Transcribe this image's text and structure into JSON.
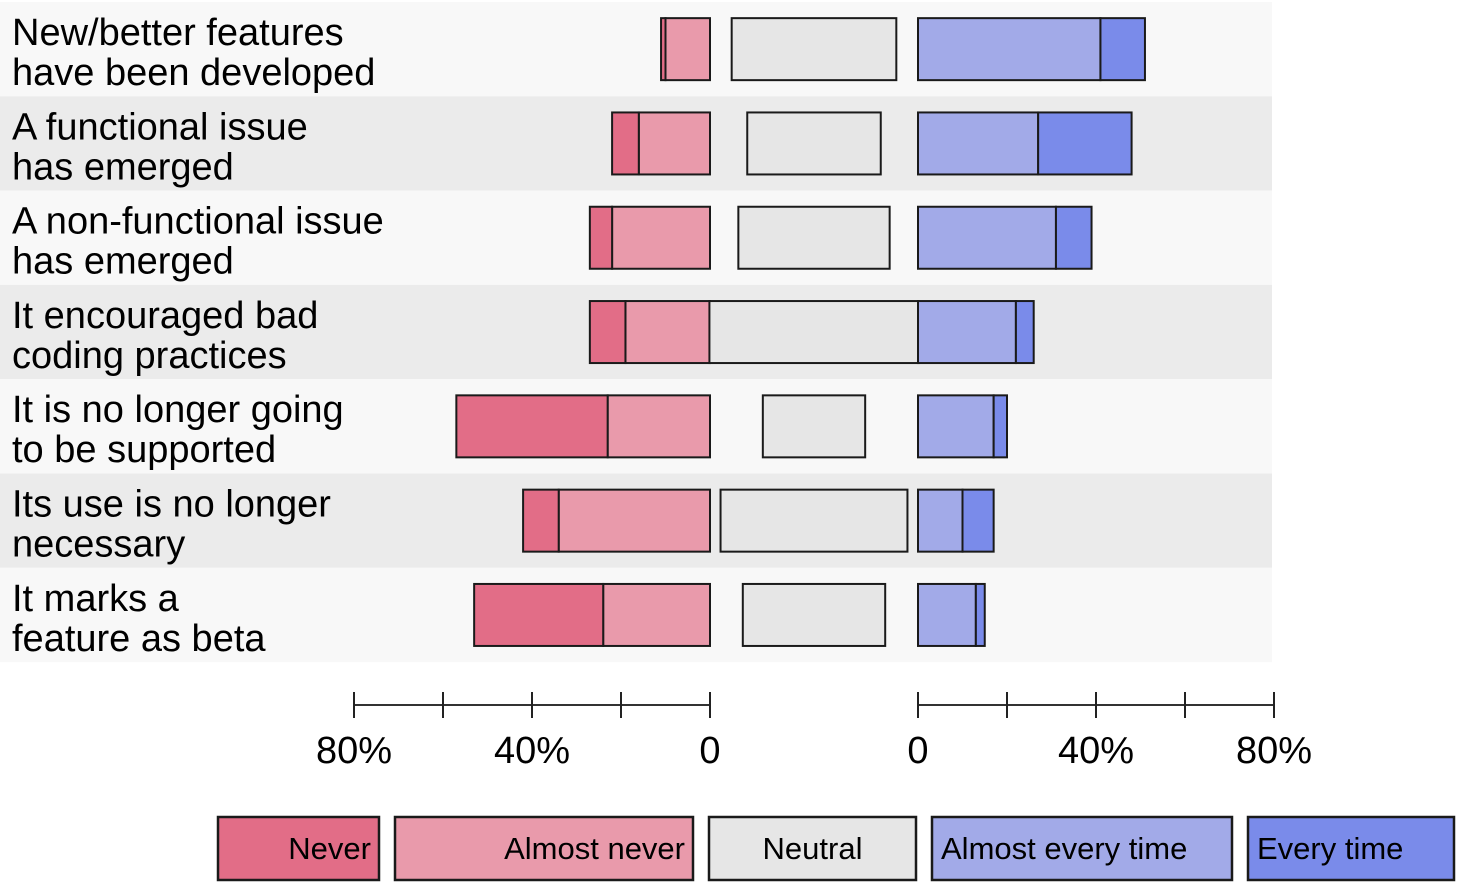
{
  "chart_data": {
    "type": "bar",
    "subtype": "diverging-stacked",
    "categories": [
      [
        "New/better features",
        "have been developed"
      ],
      [
        "A functional issue",
        "has emerged"
      ],
      [
        "A non-functional issue",
        "has emerged"
      ],
      [
        "It encouraged bad",
        "coding practices"
      ],
      [
        "It is no longer going",
        "to be supported"
      ],
      [
        "Its use is no longer",
        "necessary"
      ],
      [
        "It marks a",
        "feature as beta"
      ]
    ],
    "series": [
      {
        "name": "Never",
        "color": "#e26d87",
        "side": "negative",
        "values": [
          1,
          6,
          5,
          8,
          34,
          8,
          29
        ]
      },
      {
        "name": "Almost never",
        "color": "#e99aab",
        "side": "negative",
        "values": [
          10,
          16,
          22,
          19,
          23,
          34,
          24
        ]
      },
      {
        "name": "Neutral",
        "color": "#e6e6e6",
        "side": "neutral",
        "values": [
          37,
          30,
          34,
          47,
          23,
          42,
          32
        ]
      },
      {
        "name": "Almost every time",
        "color": "#a2aae8",
        "side": "positive",
        "values": [
          41,
          27,
          31,
          22,
          17,
          10,
          13
        ]
      },
      {
        "name": "Every time",
        "color": "#7a8bea",
        "side": "positive",
        "values": [
          10,
          21,
          8,
          4,
          3,
          7,
          2
        ]
      }
    ],
    "axis": {
      "left": {
        "ticks": [
          80,
          60,
          40,
          20,
          0
        ],
        "tick_labels": [
          "80%",
          "",
          "40%",
          "",
          "0"
        ]
      },
      "right": {
        "ticks": [
          0,
          20,
          40,
          60,
          80
        ],
        "tick_labels": [
          "0",
          "",
          "40%",
          "",
          "80%"
        ]
      },
      "range": [
        0,
        80
      ]
    },
    "legend_position": "bottom",
    "row_background_alternating": true
  }
}
